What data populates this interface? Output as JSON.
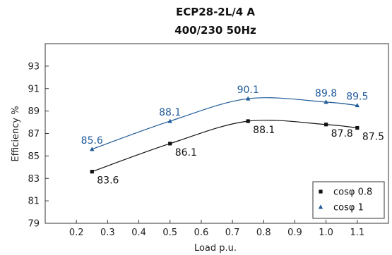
{
  "chart_data": {
    "type": "line",
    "title": "ECP28-2L/4 A",
    "subtitle": "400/230 50Hz",
    "xlabel": "Load p.u.",
    "ylabel": "Efficiency %",
    "xlim": [
      0.1,
      1.2
    ],
    "ylim": [
      79,
      95
    ],
    "xticks": [
      0.2,
      0.3,
      0.4,
      0.5,
      0.6,
      0.7,
      0.8,
      0.9,
      1.0,
      1.1
    ],
    "xtick_labels": [
      "0.2",
      "0.3",
      "0.4",
      "0.5",
      "0.6",
      "0.7",
      "0.8",
      "0.9",
      "1.0",
      "1.1"
    ],
    "yticks": [
      79,
      81,
      83,
      85,
      87,
      89,
      91,
      93
    ],
    "ytick_labels": [
      "79",
      "81",
      "83",
      "85",
      "87",
      "89",
      "91",
      "93"
    ],
    "grid": false,
    "legend_position": "bottom-right",
    "series": [
      {
        "name": "cosφ 0.8",
        "marker": "square",
        "color": "#111111",
        "x": [
          0.25,
          0.5,
          0.75,
          1.0,
          1.1
        ],
        "y": [
          83.6,
          86.1,
          88.1,
          87.8,
          87.5
        ],
        "labels": [
          "83.6",
          "86.1",
          "88.1",
          "87.8",
          "87.5"
        ]
      },
      {
        "name": "cosφ 1",
        "marker": "triangle",
        "color": "#1f5a99",
        "x": [
          0.25,
          0.5,
          0.75,
          1.0,
          1.1
        ],
        "y": [
          85.6,
          88.1,
          90.1,
          89.8,
          89.5
        ],
        "labels": [
          "85.6",
          "88.1",
          "90.1",
          "89.8",
          "89.5"
        ]
      }
    ]
  }
}
